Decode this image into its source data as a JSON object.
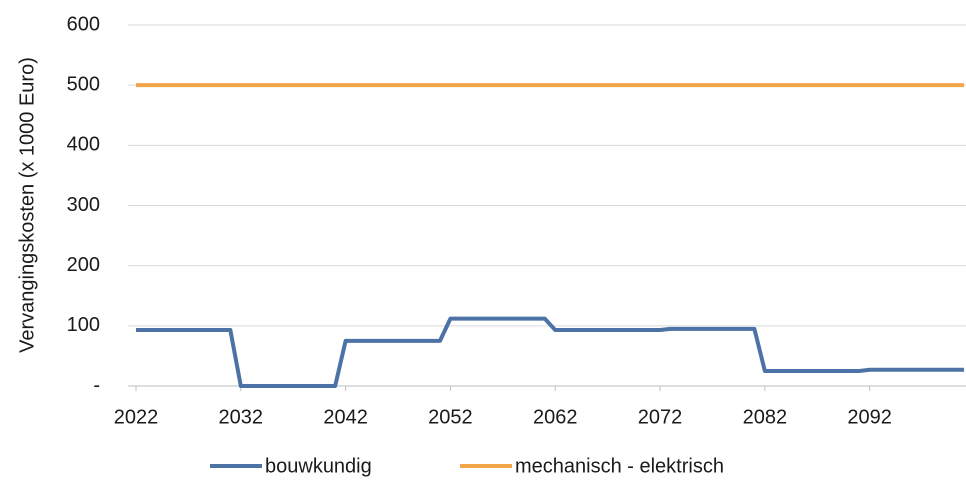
{
  "chart_data": {
    "type": "line",
    "y_label": "Vervangingskosten (x 1000 Euro)",
    "x": [
      2022,
      2031,
      2032,
      2041,
      2042,
      2051,
      2052,
      2061,
      2062,
      2072,
      2073,
      2081,
      2082,
      2091,
      2092,
      2101
    ],
    "series": [
      {
        "name": "bouwkundig",
        "color": "#4d72a6",
        "values": [
          93,
          93,
          0,
          0,
          75,
          75,
          112,
          112,
          93,
          93,
          95,
          95,
          25,
          25,
          27,
          27
        ]
      },
      {
        "name": "mechanisch - elektrisch",
        "color": "#f2a649",
        "values": [
          500,
          500,
          500,
          500,
          500,
          500,
          500,
          500,
          500,
          500,
          500,
          500,
          500,
          500,
          500,
          500
        ]
      }
    ],
    "xlim": [
      2022,
      2101
    ],
    "xticks": [
      2022,
      2032,
      2042,
      2052,
      2062,
      2072,
      2082,
      2092
    ],
    "ylim": [
      0,
      600
    ],
    "yticks": [
      {
        "value": 0,
        "label": "-"
      },
      100,
      200,
      300,
      400,
      500,
      600
    ],
    "grid": true,
    "legend": "bottom"
  }
}
